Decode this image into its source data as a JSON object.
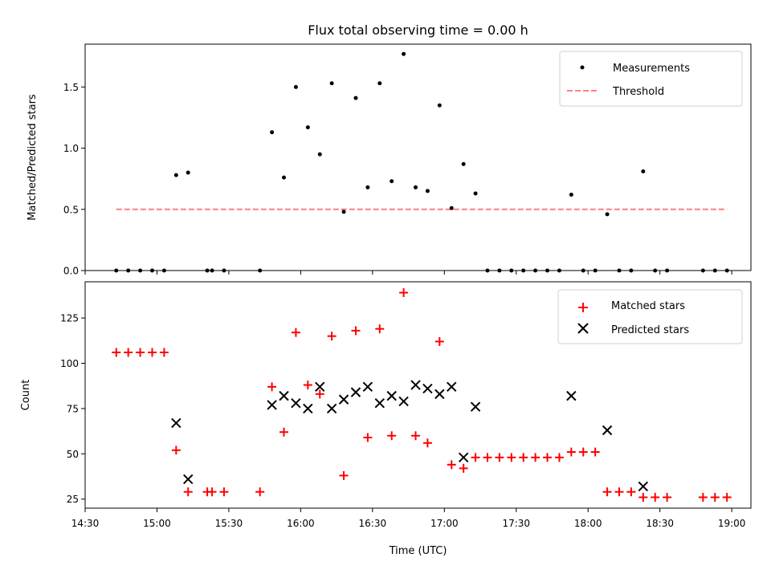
{
  "colors": {
    "measurement": "#000000",
    "threshold": "#ff7f7f",
    "matched": "#ff0000",
    "predicted": "#000000"
  },
  "chart_data": [
    {
      "type": "scatter",
      "title": "Flux total observing time = 0.00 h",
      "ylabel": "Matched/Predicted stars",
      "xlim": [
        "14:30",
        "19:08"
      ],
      "ylim": [
        0,
        1.85
      ],
      "yticks": [
        "0.0",
        "0.5",
        "1.0",
        "1.5"
      ],
      "grid": false,
      "legend_position": "top-right",
      "series": [
        {
          "name": "Measurements",
          "marker": "dot",
          "x": [
            "14:43",
            "14:48",
            "14:53",
            "14:58",
            "15:03",
            "15:08",
            "15:13",
            "15:21",
            "15:23",
            "15:28",
            "15:43",
            "15:48",
            "15:53",
            "15:58",
            "16:03",
            "16:08",
            "16:13",
            "16:18",
            "16:23",
            "16:28",
            "16:33",
            "16:38",
            "16:43",
            "16:48",
            "16:53",
            "16:58",
            "17:03",
            "17:08",
            "17:13",
            "17:18",
            "17:23",
            "17:28",
            "17:33",
            "17:38",
            "17:43",
            "17:48",
            "17:53",
            "17:58",
            "18:03",
            "18:08",
            "18:13",
            "18:18",
            "18:23",
            "18:28",
            "18:33",
            "18:48",
            "18:53",
            "18:58"
          ],
          "y": [
            0,
            0,
            0,
            0,
            0,
            0.78,
            0.8,
            0,
            0,
            0,
            0,
            1.13,
            0.76,
            1.5,
            1.17,
            0.95,
            1.53,
            0.48,
            1.41,
            0.68,
            1.53,
            0.73,
            1.77,
            0.68,
            0.65,
            1.35,
            0.51,
            0.87,
            0.63,
            0,
            0,
            0,
            0,
            0,
            0,
            0,
            0.62,
            0,
            0,
            0.46,
            0,
            0,
            0.81,
            0,
            0,
            0,
            0,
            0
          ]
        },
        {
          "name": "Threshold",
          "style": "dashed",
          "x": [
            "14:43",
            "18:58"
          ],
          "y": [
            0.5,
            0.5
          ]
        }
      ]
    },
    {
      "type": "scatter",
      "xlabel": "Time (UTC)",
      "ylabel": "Count",
      "xlim": [
        "14:30",
        "19:08"
      ],
      "ylim": [
        20,
        145
      ],
      "xticks": [
        "14:30",
        "15:00",
        "15:30",
        "16:00",
        "16:30",
        "17:00",
        "17:30",
        "18:00",
        "18:30",
        "19:00"
      ],
      "yticks": [
        "25",
        "50",
        "75",
        "100",
        "125"
      ],
      "grid": false,
      "legend_position": "top-right",
      "series": [
        {
          "name": "Matched stars",
          "marker": "plus",
          "x": [
            "14:43",
            "14:48",
            "14:53",
            "14:58",
            "15:03",
            "15:08",
            "15:13",
            "15:21",
            "15:23",
            "15:28",
            "15:43",
            "15:48",
            "15:53",
            "15:58",
            "16:03",
            "16:08",
            "16:13",
            "16:18",
            "16:23",
            "16:28",
            "16:33",
            "16:38",
            "16:43",
            "16:48",
            "16:53",
            "16:58",
            "17:03",
            "17:08",
            "17:13",
            "17:18",
            "17:23",
            "17:28",
            "17:33",
            "17:38",
            "17:43",
            "17:48",
            "17:53",
            "17:58",
            "18:03",
            "18:08",
            "18:13",
            "18:18",
            "18:23",
            "18:28",
            "18:33",
            "18:48",
            "18:53",
            "18:58"
          ],
          "y": [
            106,
            106,
            106,
            106,
            106,
            52,
            29,
            29,
            29,
            29,
            29,
            87,
            62,
            117,
            88,
            83,
            115,
            38,
            118,
            59,
            119,
            60,
            139,
            60,
            56,
            112,
            44,
            42,
            48,
            48,
            48,
            48,
            48,
            48,
            48,
            48,
            51,
            51,
            51,
            29,
            29,
            29,
            26,
            26,
            26,
            26,
            26,
            26
          ]
        },
        {
          "name": "Predicted stars",
          "marker": "x",
          "x": [
            "15:08",
            "15:13",
            "15:48",
            "15:53",
            "15:58",
            "16:03",
            "16:08",
            "16:13",
            "16:18",
            "16:23",
            "16:28",
            "16:33",
            "16:38",
            "16:43",
            "16:48",
            "16:53",
            "16:58",
            "17:03",
            "17:08",
            "17:13",
            "17:53",
            "18:08",
            "18:23"
          ],
          "y": [
            67,
            36,
            77,
            82,
            78,
            75,
            87,
            75,
            80,
            84,
            87,
            78,
            82,
            79,
            88,
            86,
            83,
            87,
            48,
            76,
            82,
            63,
            32
          ]
        }
      ]
    }
  ]
}
